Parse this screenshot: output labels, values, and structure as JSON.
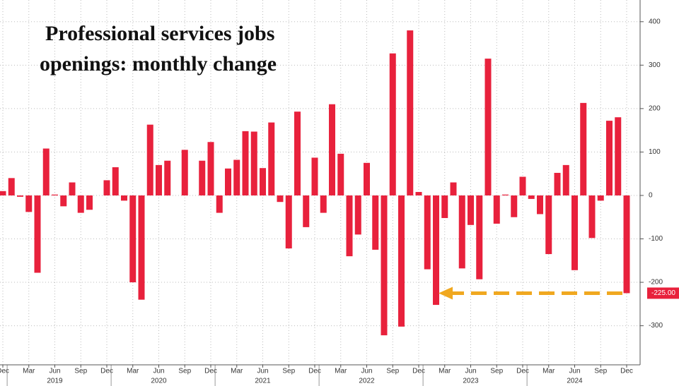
{
  "chart_data": {
    "type": "bar",
    "title_lines": [
      "Professional services jobs",
      "openings: monthly change"
    ],
    "categories": [
      "Dec",
      null,
      null,
      "Mar",
      null,
      null,
      "Jun",
      null,
      null,
      "Sep",
      null,
      null,
      "Dec",
      null,
      null,
      "Mar",
      null,
      null,
      "Jun",
      null,
      null,
      "Sep",
      null,
      null,
      "Dec",
      null,
      null,
      "Mar",
      null,
      null,
      "Jun",
      null,
      null,
      "Sep",
      null,
      null,
      "Dec",
      null,
      null,
      "Mar",
      null,
      null,
      "Jun",
      null,
      null,
      "Sep",
      null,
      null,
      "Dec",
      null,
      null,
      "Mar",
      null,
      null,
      "Jun",
      null,
      null,
      "Sep",
      null,
      null,
      "Dec",
      null,
      null,
      "Mar",
      null,
      null,
      "Jun",
      null,
      null,
      "Sep",
      null,
      null,
      "Dec"
    ],
    "year_labels": [
      "2019",
      "2020",
      "2021",
      "2022",
      "2023",
      "2024"
    ],
    "values": [
      10,
      40,
      -3,
      -38,
      -178,
      108,
      2,
      -25,
      30,
      -40,
      -33,
      0,
      35,
      65,
      -12,
      -200,
      -240,
      163,
      70,
      80,
      0,
      105,
      0,
      80,
      123,
      -40,
      62,
      82,
      148,
      147,
      63,
      168,
      -15,
      -122,
      193,
      -73,
      87,
      -40,
      210,
      96,
      -140,
      -90,
      75,
      -125,
      -322,
      327,
      -302,
      380,
      8,
      -170,
      -252,
      -52,
      30,
      -168,
      -68,
      -193,
      315,
      -65,
      2,
      -50,
      43,
      -8,
      -43,
      -135,
      52,
      70,
      -172,
      213,
      -98,
      -12,
      172,
      180,
      -225
    ],
    "last_value_label": "-225.00",
    "color": "#e8213c",
    "ylim": [
      -390,
      450
    ],
    "yticks": [
      400,
      300,
      200,
      100,
      0,
      -100,
      -200,
      -300
    ],
    "grid": true
  }
}
